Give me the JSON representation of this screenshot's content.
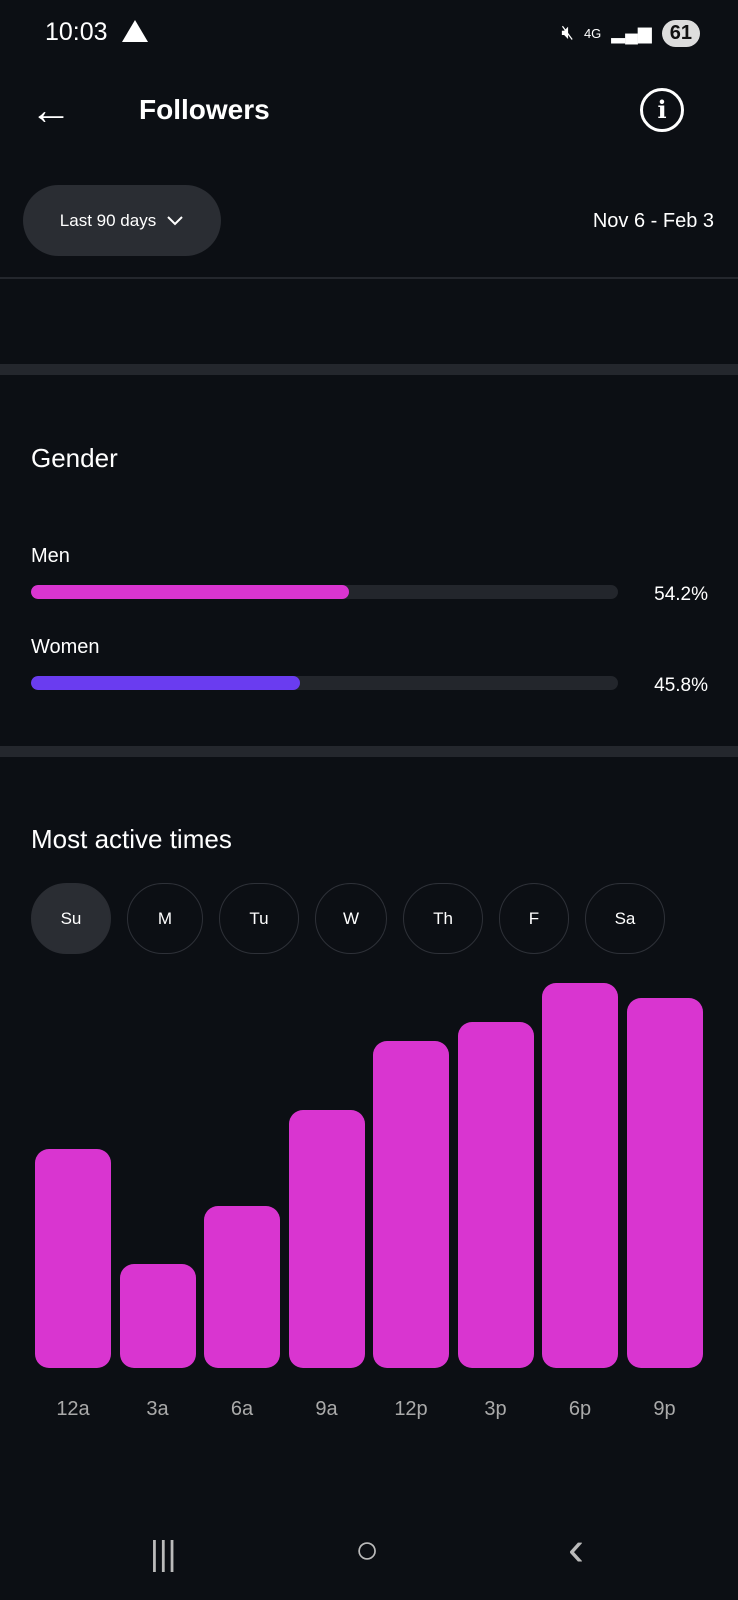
{
  "status": {
    "time": "10:03",
    "network": "4G",
    "battery": "61",
    "icons": [
      "warning-icon",
      "mute-icon",
      "signal-icon"
    ]
  },
  "header": {
    "title": "Followers",
    "back": "←",
    "info": "i"
  },
  "filter": {
    "period": "Last 90 days",
    "date_range": "Nov 6 - Feb 3"
  },
  "gender": {
    "title": "Gender",
    "items": [
      {
        "label": "Men",
        "value": "54.2%",
        "fraction": 0.542,
        "color": "#d935d0"
      },
      {
        "label": "Women",
        "value": "45.8%",
        "fraction": 0.458,
        "color": "#6a3cf0"
      }
    ]
  },
  "active": {
    "title": "Most active times",
    "days": [
      "Su",
      "M",
      "Tu",
      "W",
      "Th",
      "F",
      "Sa"
    ],
    "selected": "Su"
  },
  "chart_data": {
    "type": "bar",
    "title": "Most active times",
    "categories": [
      "12a",
      "3a",
      "6a",
      "9a",
      "12p",
      "3p",
      "6p",
      "9p"
    ],
    "values": [
      57,
      27,
      42,
      67,
      85,
      90,
      100,
      96
    ],
    "ylim": [
      0,
      100
    ],
    "color": "#d935d0"
  },
  "nav": {
    "recents": "|||",
    "home": "○",
    "back": "‹"
  }
}
